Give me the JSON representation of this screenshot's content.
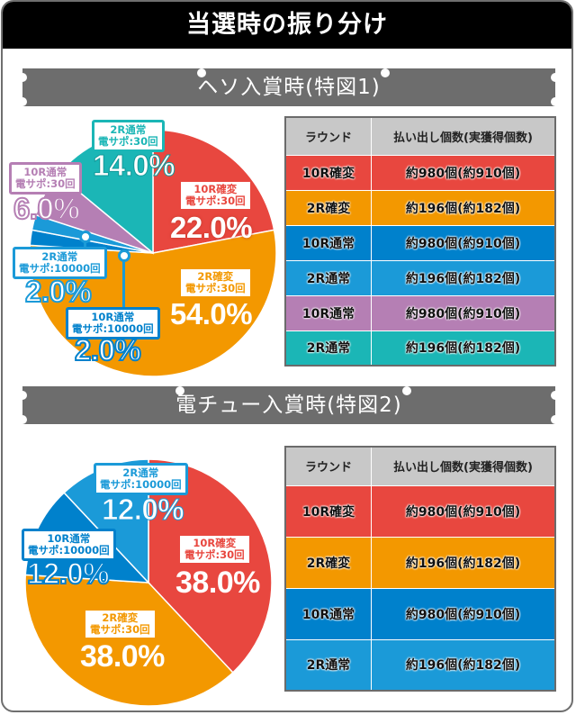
{
  "title": "当選時の振り分け",
  "colors": {
    "red": "#e8473f",
    "orange": "#f39800",
    "blue_dark": "#0081cc",
    "blue_light": "#1b9ad8",
    "purple": "#b57fb4",
    "teal": "#1bb6b6",
    "header_gray": "#c8c8c8",
    "banner_gray": "#6d6d6d"
  },
  "sections": [
    {
      "banner": "ヘソ入賞時(特図1)",
      "table": {
        "headers": [
          "ラウンド",
          "払い出し個数(実獲得個数)"
        ],
        "rows": [
          {
            "round": "10R確変",
            "payout": "約980個(約910個)",
            "color": "#e8473f"
          },
          {
            "round": "2R確変",
            "payout": "約196個(約182個)",
            "color": "#f39800"
          },
          {
            "round": "10R通常",
            "payout": "約980個(約910個)",
            "color": "#0081cc"
          },
          {
            "round": "2R通常",
            "payout": "約196個(約182個)",
            "color": "#1b9ad8"
          },
          {
            "round": "10R通常",
            "payout": "約980個(約910個)",
            "color": "#b57fb4"
          },
          {
            "round": "2R通常",
            "payout": "約196個(約182個)",
            "color": "#1bb6b6"
          }
        ]
      },
      "slices": [
        {
          "name": "10R確変",
          "sub": "電サポ:30回",
          "pct": "22.0%"
        },
        {
          "name": "2R確変",
          "sub": "電サポ:30回",
          "pct": "54.0%"
        },
        {
          "name": "10R通常",
          "sub": "電サポ:10000回",
          "pct": "2.0%"
        },
        {
          "name": "2R通常",
          "sub": "電サポ:10000回",
          "pct": "2.0%"
        },
        {
          "name": "10R通常",
          "sub": "電サポ:30回",
          "pct": "6.0%"
        },
        {
          "name": "2R通常",
          "sub": "電サポ:30回",
          "pct": "14.0%"
        }
      ]
    },
    {
      "banner": "電チュー入賞時(特図2)",
      "table": {
        "headers": [
          "ラウンド",
          "払い出し個数(実獲得個数)"
        ],
        "rows": [
          {
            "round": "10R確変",
            "payout": "約980個(約910個)",
            "color": "#e8473f"
          },
          {
            "round": "2R確変",
            "payout": "約196個(約182個)",
            "color": "#f39800"
          },
          {
            "round": "10R通常",
            "payout": "約980個(約910個)",
            "color": "#0081cc"
          },
          {
            "round": "2R通常",
            "payout": "約196個(約182個)",
            "color": "#1b9ad8"
          }
        ]
      },
      "slices": [
        {
          "name": "10R確変",
          "sub": "電サポ:30回",
          "pct": "38.0%"
        },
        {
          "name": "2R確変",
          "sub": "電サポ:30回",
          "pct": "38.0%"
        },
        {
          "name": "10R通常",
          "sub": "電サポ:10000回",
          "pct": "12.0%"
        },
        {
          "name": "2R通常",
          "sub": "電サポ:10000回",
          "pct": "12.0%"
        }
      ]
    }
  ],
  "chart_data": [
    {
      "type": "pie",
      "title": "ヘソ入賞時(特図1)",
      "categories": [
        "10R確変 電サポ:30回",
        "2R確変 電サポ:30回",
        "10R通常 電サポ:10000回",
        "2R通常 電サポ:10000回",
        "10R通常 電サポ:30回",
        "2R通常 電サポ:30回"
      ],
      "values": [
        22.0,
        54.0,
        2.0,
        2.0,
        6.0,
        14.0
      ],
      "colors": [
        "#e8473f",
        "#f39800",
        "#0081cc",
        "#1b9ad8",
        "#b57fb4",
        "#1bb6b6"
      ],
      "start": "12 o'clock, clockwise"
    },
    {
      "type": "pie",
      "title": "電チュー入賞時(特図2)",
      "categories": [
        "10R確変 電サポ:30回",
        "2R確変 電サポ:30回",
        "10R通常 電サポ:10000回",
        "2R通常 電サポ:10000回"
      ],
      "values": [
        38.0,
        38.0,
        12.0,
        12.0
      ],
      "colors": [
        "#e8473f",
        "#f39800",
        "#0081cc",
        "#1b9ad8"
      ],
      "start": "12 o'clock, clockwise"
    }
  ]
}
